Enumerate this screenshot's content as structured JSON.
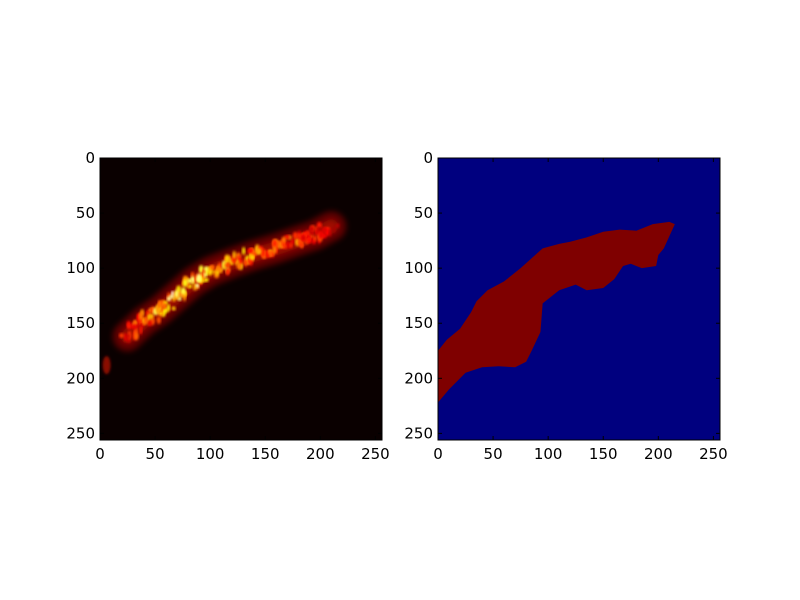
{
  "chart_data": [
    {
      "type": "heatmap",
      "title": "",
      "xlabel": "",
      "ylabel": "",
      "xlim": [
        0,
        256
      ],
      "ylim": [
        256,
        0
      ],
      "x_ticks": [
        "0",
        "50",
        "100",
        "150",
        "200",
        "250"
      ],
      "y_ticks": [
        "0",
        "50",
        "100",
        "150",
        "200",
        "250"
      ],
      "colormap": "hot",
      "background_color": "#0a0000",
      "description_values": {
        "band_centerline": [
          [
            25,
            162
          ],
          [
            40,
            148
          ],
          [
            55,
            138
          ],
          [
            70,
            125
          ],
          [
            85,
            112
          ],
          [
            100,
            103
          ],
          [
            120,
            95
          ],
          [
            140,
            88
          ],
          [
            160,
            82
          ],
          [
            180,
            75
          ],
          [
            195,
            70
          ],
          [
            210,
            62
          ]
        ],
        "band_peak_intensity": [
          0.55,
          0.7,
          0.85,
          1.0,
          0.95,
          0.9,
          0.85,
          0.8,
          0.75,
          0.7,
          0.6,
          0.5
        ]
      },
      "grid": false
    },
    {
      "type": "heatmap",
      "title": "",
      "xlabel": "",
      "ylabel": "",
      "xlim": [
        0,
        256
      ],
      "ylim": [
        256,
        0
      ],
      "x_ticks": [
        "0",
        "50",
        "100",
        "150",
        "200",
        "250"
      ],
      "y_ticks": [
        "0",
        "50",
        "100",
        "150",
        "200",
        "250"
      ],
      "colormap": "jet",
      "classes": [
        {
          "label": "0",
          "color": "#00007f"
        },
        {
          "label": "1",
          "color": "#7f0000"
        }
      ],
      "mask_polygon": [
        [
          0,
          175
        ],
        [
          8,
          165
        ],
        [
          20,
          155
        ],
        [
          30,
          140
        ],
        [
          35,
          130
        ],
        [
          45,
          120
        ],
        [
          60,
          112
        ],
        [
          75,
          100
        ],
        [
          95,
          82
        ],
        [
          110,
          78
        ],
        [
          120,
          76
        ],
        [
          135,
          72
        ],
        [
          150,
          67
        ],
        [
          165,
          65
        ],
        [
          180,
          66
        ],
        [
          195,
          60
        ],
        [
          210,
          58
        ],
        [
          215,
          60
        ],
        [
          205,
          82
        ],
        [
          200,
          88
        ],
        [
          198,
          98
        ],
        [
          185,
          100
        ],
        [
          175,
          96
        ],
        [
          168,
          98
        ],
        [
          160,
          110
        ],
        [
          150,
          118
        ],
        [
          135,
          120
        ],
        [
          125,
          115
        ],
        [
          110,
          120
        ],
        [
          95,
          132
        ],
        [
          93,
          158
        ],
        [
          85,
          175
        ],
        [
          80,
          185
        ],
        [
          70,
          190
        ],
        [
          55,
          189
        ],
        [
          40,
          190
        ],
        [
          25,
          195
        ],
        [
          10,
          210
        ],
        [
          0,
          222
        ]
      ],
      "grid": false
    }
  ]
}
